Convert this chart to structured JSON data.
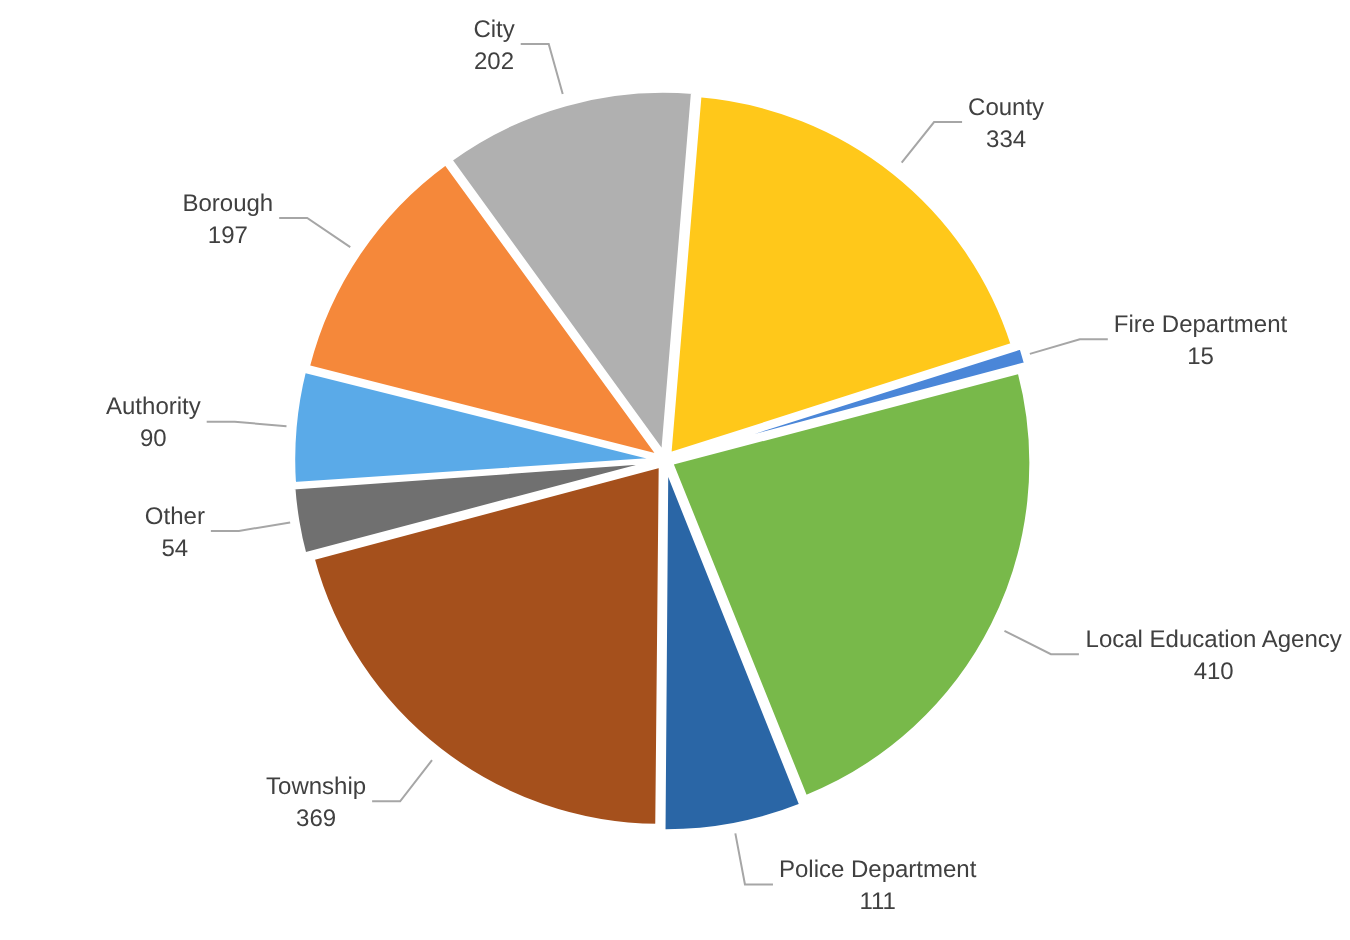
{
  "chart_data": {
    "type": "pie",
    "categories": [
      "Authority",
      "Borough",
      "City",
      "County",
      "Fire Department",
      "Local Education Agency",
      "Police Department",
      "Township",
      "Other"
    ],
    "values": [
      90,
      197,
      202,
      334,
      15,
      410,
      111,
      369,
      54
    ],
    "colors": [
      "#5aaae8",
      "#f5883a",
      "#b0b0b0",
      "#ffc81a",
      "#4a86d8",
      "#78b94a",
      "#2a66a6",
      "#a5501c",
      "#707070"
    ],
    "data_labels": true,
    "legend": false
  }
}
